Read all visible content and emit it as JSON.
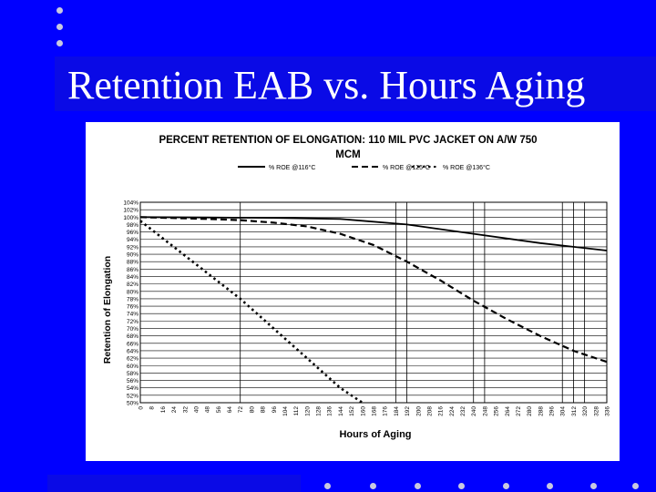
{
  "slide": {
    "title": "Retention EAB vs. Hours Aging"
  },
  "colors": {
    "background": "#0000ff",
    "band": "#0a0ae6",
    "dots": "#c8c8e0",
    "chart_bg": "#ffffff",
    "ink": "#000000"
  },
  "chart_data": {
    "type": "line",
    "title_line1": "PERCENT RETENTION OF ELONGATION:  110 MIL PVC JACKET ON A/W 750",
    "title_line2": "MCM",
    "xlabel": "Hours of Aging",
    "ylabel": "Retention of Elongation",
    "xlim": [
      0,
      336
    ],
    "ylim": [
      50,
      104
    ],
    "x_ticks": [
      0,
      8,
      16,
      24,
      32,
      40,
      48,
      56,
      64,
      72,
      80,
      88,
      96,
      104,
      112,
      120,
      128,
      136,
      144,
      152,
      160,
      168,
      176,
      184,
      192,
      200,
      208,
      216,
      224,
      232,
      240,
      248,
      256,
      264,
      272,
      280,
      288,
      296,
      304,
      312,
      320,
      328,
      336
    ],
    "y_ticks": [
      50,
      52,
      54,
      56,
      58,
      60,
      62,
      64,
      66,
      68,
      70,
      72,
      74,
      76,
      78,
      80,
      82,
      84,
      86,
      88,
      90,
      92,
      94,
      96,
      98,
      100,
      102,
      104
    ],
    "y_tick_labels": [
      "50%",
      "52%",
      "54%",
      "56%",
      "58%",
      "60%",
      "62%",
      "64%",
      "66%",
      "68%",
      "70%",
      "72%",
      "74%",
      "76%",
      "78%",
      "80%",
      "82%",
      "84%",
      "86%",
      "88%",
      "90%",
      "92%",
      "94%",
      "96%",
      "98%",
      "100%",
      "102%",
      "104%"
    ],
    "y_tick_suffix": "%",
    "vertical_gridlines": [
      0,
      72,
      184,
      192,
      240,
      248,
      304,
      312,
      320,
      336
    ],
    "legend_position": "top",
    "series": [
      {
        "name": "% ROE @116°C",
        "dash": "solid",
        "x": [
          0,
          48,
          96,
          144,
          192,
          240,
          288,
          336
        ],
        "y": [
          100,
          99.9,
          99.8,
          99.5,
          98,
          95.5,
          93,
          91
        ]
      },
      {
        "name": "% ROE @125°C",
        "dash": "dashed",
        "x": [
          0,
          48,
          72,
          96,
          120,
          144,
          168,
          192,
          216,
          240,
          264,
          288,
          312,
          336
        ],
        "y": [
          100,
          99.5,
          99.2,
          98.5,
          97.5,
          95.5,
          92.5,
          88,
          83,
          77.5,
          72.5,
          68,
          64,
          61
        ]
      },
      {
        "name": "% ROE @136°C",
        "dash": "dotted",
        "x": [
          0,
          24,
          48,
          72,
          96,
          120,
          144,
          160
        ],
        "y": [
          99,
          92,
          85,
          78,
          70,
          62,
          54,
          50
        ]
      }
    ]
  }
}
